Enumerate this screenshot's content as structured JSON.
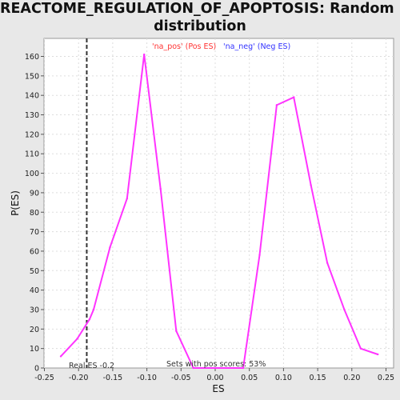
{
  "title_line1": "REACTOME_REGULATION_OF_APOPTOSIS: Random ES",
  "title_line2": "distribution",
  "legend": {
    "pos_label": "'na_pos' (Pos ES)",
    "neg_label": "'na_neg' (Neg ES)",
    "pos_color": "#ff3333",
    "neg_color": "#3333ff"
  },
  "annotations": {
    "real_es": "Real ES -0.2",
    "sets_pos": "Sets with pos scores: 53%"
  },
  "chart_data": {
    "type": "line",
    "title": "REACTOME_REGULATION_OF_APOPTOSIS: Random ES distribution",
    "xlabel": "ES",
    "ylabel": "P(ES)",
    "xlim": [
      -0.25,
      0.25
    ],
    "ylim": [
      0,
      170
    ],
    "xticks": [
      -0.25,
      -0.2,
      -0.15,
      -0.1,
      -0.05,
      0.0,
      0.05,
      0.1,
      0.15,
      0.2,
      0.25
    ],
    "xtick_labels": [
      "-0.25",
      "-0.20",
      "-0.15",
      "-0.10",
      "-0.05",
      "0.00",
      "0.05",
      "0.10",
      "0.15",
      "0.20",
      "0.25"
    ],
    "yticks": [
      0,
      10,
      20,
      30,
      40,
      50,
      60,
      70,
      80,
      90,
      100,
      110,
      120,
      130,
      140,
      150,
      160
    ],
    "grid": true,
    "series": [
      {
        "color": "#ff33ff",
        "x": [
          -0.226,
          -0.202,
          -0.184,
          -0.178,
          -0.154,
          -0.129,
          -0.104,
          -0.08,
          -0.057,
          -0.032,
          0.041,
          0.065,
          0.09,
          0.115,
          0.14,
          0.164,
          0.189,
          0.213,
          0.238
        ],
        "y": [
          6,
          15,
          25,
          30,
          62,
          87,
          161,
          92,
          19,
          0,
          0,
          58,
          135,
          139,
          94,
          54,
          30,
          10,
          7
        ]
      }
    ],
    "vline": {
      "x": -0.188,
      "style": "dashed",
      "color": "#333333"
    }
  }
}
